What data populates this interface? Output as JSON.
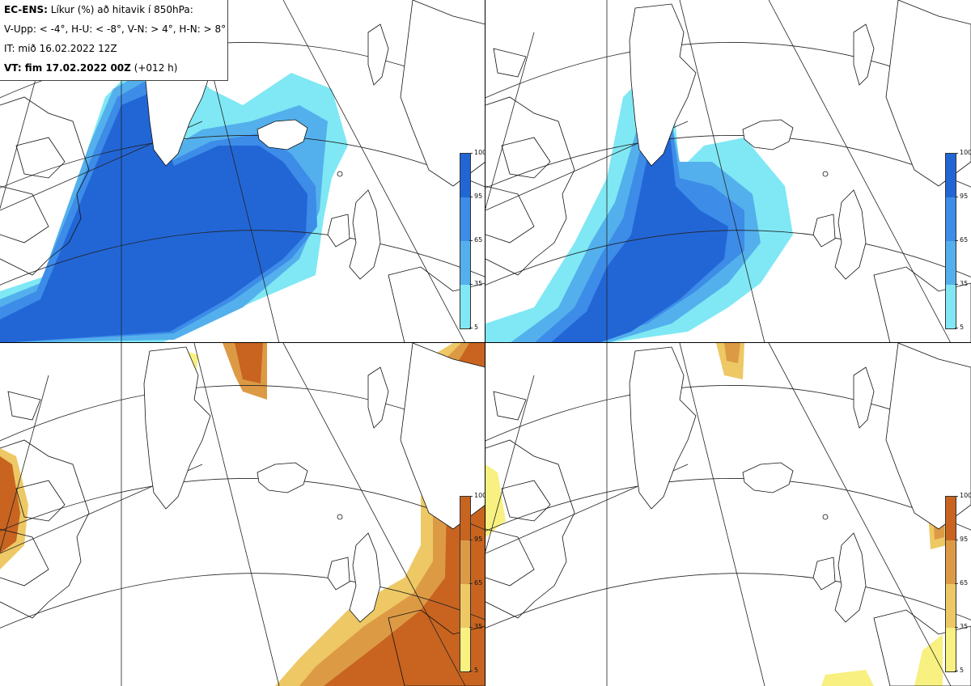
{
  "header": {
    "line1_bold": "EC-ENS:",
    "line1_rest": " Líkur (%) að hitavik í 850hPa:",
    "line2": "V-Upp: < -4°, H-U: < -8°, V-N: > 4°, H-N: > 8°",
    "line3": "IT: mið 16.02.2022 12Z",
    "line4_bold": "VT: fim 17.02.2022 00Z",
    "line4_rest": " (+012 h)"
  },
  "panels": [
    {
      "id": "V-Upp",
      "palette": "blue"
    },
    {
      "id": "H-U",
      "palette": "blue"
    },
    {
      "id": "V-N",
      "palette": "orange"
    },
    {
      "id": "H-N",
      "palette": "orange"
    }
  ],
  "colorbar": {
    "ticks": [
      "100",
      "95",
      "65",
      "35",
      "5"
    ],
    "blue_colors": [
      "#2266d6",
      "#3d8ce8",
      "#53b0ec",
      "#7fe8f4"
    ],
    "orange_colors": [
      "#c86420",
      "#dd9a45",
      "#edc865",
      "#f8f080"
    ]
  }
}
